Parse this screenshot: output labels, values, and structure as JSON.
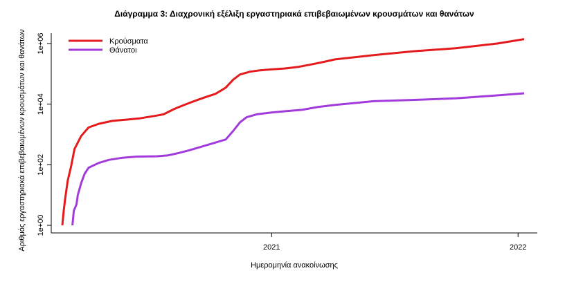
{
  "chart_data": {
    "type": "line",
    "title": "Διάγραμμα 3: Διαχρονική εξέλιξη εργαστηριακά επιβεβαιωμένων κρουσμάτων και θανάτων",
    "xlabel": "Ημερομηνία ανακοίνωσης",
    "ylabel": "Αριθμός εργαστηριακά επιβεβαιωμένων κρουσμάτων και θανάτων",
    "y_scale": "log",
    "ylim": [
      1,
      1000000
    ],
    "xlim": [
      "2020-02-26",
      "2022-01-10"
    ],
    "x_ticks": [
      {
        "label": "2021",
        "date": "2021-01-01"
      },
      {
        "label": "2022",
        "date": "2022-01-01"
      }
    ],
    "y_ticks": [
      {
        "label": "1e+00",
        "value": 1
      },
      {
        "label": "1e+02",
        "value": 100
      },
      {
        "label": "1e+04",
        "value": 10000
      },
      {
        "label": "1e+06",
        "value": 1000000
      }
    ],
    "legend_position": "top-left",
    "series": [
      {
        "name": "Κρούσματα",
        "color": "#e41a1c",
        "points": [
          [
            "2020-02-26",
            1
          ],
          [
            "2020-02-28",
            3
          ],
          [
            "2020-03-01",
            7
          ],
          [
            "2020-03-05",
            30
          ],
          [
            "2020-03-10",
            89
          ],
          [
            "2020-03-15",
            330
          ],
          [
            "2020-03-25",
            890
          ],
          [
            "2020-04-05",
            1700
          ],
          [
            "2020-04-20",
            2250
          ],
          [
            "2020-05-10",
            2800
          ],
          [
            "2020-06-01",
            3100
          ],
          [
            "2020-06-20",
            3400
          ],
          [
            "2020-07-15",
            4200
          ],
          [
            "2020-07-25",
            4600
          ],
          [
            "2020-08-10",
            7000
          ],
          [
            "2020-08-25",
            9500
          ],
          [
            "2020-09-10",
            13000
          ],
          [
            "2020-09-25",
            17000
          ],
          [
            "2020-10-10",
            22000
          ],
          [
            "2020-10-25",
            35000
          ],
          [
            "2020-11-05",
            64000
          ],
          [
            "2020-11-15",
            95000
          ],
          [
            "2020-11-30",
            118000
          ],
          [
            "2020-12-15",
            131000
          ],
          [
            "2021-01-01",
            140000
          ],
          [
            "2021-01-20",
            150000
          ],
          [
            "2021-02-10",
            170000
          ],
          [
            "2021-03-01",
            205000
          ],
          [
            "2021-03-20",
            250000
          ],
          [
            "2021-04-05",
            300000
          ],
          [
            "2021-06-01",
            415000
          ],
          [
            "2021-08-01",
            560000
          ],
          [
            "2021-10-01",
            700000
          ],
          [
            "2021-12-01",
            1000000
          ],
          [
            "2022-01-10",
            1400000
          ]
        ]
      },
      {
        "name": "Θάνατοι",
        "color": "#a13bdc",
        "points": [
          [
            "2020-03-12",
            1
          ],
          [
            "2020-03-14",
            3
          ],
          [
            "2020-03-18",
            5
          ],
          [
            "2020-03-20",
            10
          ],
          [
            "2020-03-25",
            25
          ],
          [
            "2020-03-30",
            50
          ],
          [
            "2020-04-05",
            80
          ],
          [
            "2020-04-20",
            115
          ],
          [
            "2020-05-05",
            145
          ],
          [
            "2020-05-25",
            170
          ],
          [
            "2020-06-15",
            185
          ],
          [
            "2020-07-15",
            190
          ],
          [
            "2020-08-01",
            205
          ],
          [
            "2020-08-15",
            240
          ],
          [
            "2020-09-01",
            300
          ],
          [
            "2020-09-20",
            400
          ],
          [
            "2020-10-10",
            540
          ],
          [
            "2020-10-25",
            680
          ],
          [
            "2020-11-05",
            1300
          ],
          [
            "2020-11-15",
            2500
          ],
          [
            "2020-11-25",
            3700
          ],
          [
            "2020-12-10",
            4600
          ],
          [
            "2021-01-01",
            5300
          ],
          [
            "2021-01-20",
            5800
          ],
          [
            "2021-02-15",
            6500
          ],
          [
            "2021-03-10",
            8000
          ],
          [
            "2021-04-05",
            9400
          ],
          [
            "2021-06-01",
            12500
          ],
          [
            "2021-08-01",
            13800
          ],
          [
            "2021-10-01",
            15500
          ],
          [
            "2021-12-01",
            19500
          ],
          [
            "2022-01-10",
            22800
          ]
        ]
      }
    ]
  }
}
